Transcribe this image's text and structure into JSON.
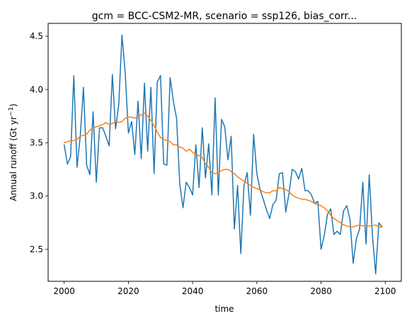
{
  "chart_data": {
    "type": "line",
    "title": "gcm = BCC-CSM2-MR, scenario = ssp126, bias_corr...",
    "xlabel": "time",
    "ylabel": "Annual runoff (Gt yr",
    "ylabel_sup": "−1",
    "ylabel_close": ")",
    "xlim": [
      1995,
      2105
    ],
    "ylim": [
      2.2,
      4.62
    ],
    "xticks": [
      2000,
      2020,
      2040,
      2060,
      2080,
      2100
    ],
    "yticks": [
      2.5,
      3.0,
      3.5,
      4.0,
      4.5
    ],
    "ytick_labels": [
      "2.5",
      "3.0",
      "3.5",
      "4.0",
      "4.5"
    ],
    "grid": false,
    "colors": {
      "series1": "#1f77b4",
      "series2": "#ff7f0e"
    },
    "series": [
      {
        "values": [
          [
            2000,
            3.48
          ],
          [
            2001,
            3.3
          ],
          [
            2002,
            3.37
          ],
          [
            2003,
            4.13
          ],
          [
            2004,
            3.27
          ],
          [
            2005,
            3.56
          ],
          [
            2006,
            4.02
          ],
          [
            2007,
            3.29
          ],
          [
            2008,
            3.2
          ],
          [
            2009,
            3.79
          ],
          [
            2010,
            3.13
          ],
          [
            2011,
            3.64
          ],
          [
            2012,
            3.64
          ],
          [
            2013,
            3.56
          ],
          [
            2014,
            3.47
          ],
          [
            2015,
            4.14
          ],
          [
            2016,
            3.63
          ],
          [
            2017,
            3.86
          ],
          [
            2018,
            4.51
          ],
          [
            2019,
            4.16
          ],
          [
            2020,
            3.59
          ],
          [
            2021,
            3.7
          ],
          [
            2022,
            3.39
          ],
          [
            2023,
            3.89
          ],
          [
            2024,
            3.35
          ],
          [
            2025,
            4.06
          ],
          [
            2026,
            3.42
          ],
          [
            2027,
            4.02
          ],
          [
            2028,
            3.21
          ],
          [
            2029,
            4.07
          ],
          [
            2030,
            4.13
          ],
          [
            2031,
            3.3
          ],
          [
            2032,
            3.29
          ],
          [
            2033,
            4.11
          ],
          [
            2034,
            3.89
          ],
          [
            2035,
            3.73
          ],
          [
            2036,
            3.11
          ],
          [
            2037,
            2.89
          ],
          [
            2038,
            3.13
          ],
          [
            2039,
            3.08
          ],
          [
            2040,
            3.01
          ],
          [
            2041,
            3.48
          ],
          [
            2042,
            3.08
          ],
          [
            2043,
            3.64
          ],
          [
            2044,
            3.17
          ],
          [
            2045,
            3.49
          ],
          [
            2046,
            3.01
          ],
          [
            2047,
            3.92
          ],
          [
            2048,
            3.01
          ],
          [
            2049,
            3.72
          ],
          [
            2050,
            3.65
          ],
          [
            2051,
            3.34
          ],
          [
            2052,
            3.56
          ],
          [
            2053,
            2.69
          ],
          [
            2054,
            3.1
          ],
          [
            2055,
            2.46
          ],
          [
            2056,
            3.1
          ],
          [
            2057,
            3.22
          ],
          [
            2058,
            2.82
          ],
          [
            2059,
            3.58
          ],
          [
            2060,
            3.21
          ],
          [
            2061,
            3.06
          ],
          [
            2062,
            2.97
          ],
          [
            2063,
            2.87
          ],
          [
            2064,
            2.79
          ],
          [
            2065,
            2.92
          ],
          [
            2066,
            2.96
          ],
          [
            2067,
            3.21
          ],
          [
            2068,
            3.22
          ],
          [
            2069,
            2.85
          ],
          [
            2070,
            3.02
          ],
          [
            2071,
            3.25
          ],
          [
            2072,
            3.23
          ],
          [
            2073,
            3.16
          ],
          [
            2074,
            3.26
          ],
          [
            2075,
            3.05
          ],
          [
            2076,
            3.05
          ],
          [
            2077,
            3.01
          ],
          [
            2078,
            2.93
          ],
          [
            2079,
            2.95
          ],
          [
            2080,
            2.5
          ],
          [
            2081,
            2.63
          ],
          [
            2082,
            2.83
          ],
          [
            2083,
            2.88
          ],
          [
            2084,
            2.64
          ],
          [
            2085,
            2.67
          ],
          [
            2086,
            2.64
          ],
          [
            2087,
            2.86
          ],
          [
            2088,
            2.91
          ],
          [
            2089,
            2.78
          ],
          [
            2090,
            2.37
          ],
          [
            2091,
            2.6
          ],
          [
            2092,
            2.69
          ],
          [
            2093,
            3.13
          ],
          [
            2094,
            2.55
          ],
          [
            2095,
            3.2
          ],
          [
            2096,
            2.63
          ],
          [
            2097,
            2.27
          ],
          [
            2098,
            2.75
          ],
          [
            2099,
            2.71
          ]
        ]
      },
      {
        "values": [
          [
            2000,
            3.5
          ],
          [
            2001,
            3.51
          ],
          [
            2002,
            3.52
          ],
          [
            2003,
            3.52
          ],
          [
            2004,
            3.53
          ],
          [
            2005,
            3.56
          ],
          [
            2006,
            3.57
          ],
          [
            2007,
            3.58
          ],
          [
            2008,
            3.62
          ],
          [
            2009,
            3.64
          ],
          [
            2010,
            3.65
          ],
          [
            2011,
            3.66
          ],
          [
            2012,
            3.67
          ],
          [
            2013,
            3.69
          ],
          [
            2014,
            3.67
          ],
          [
            2015,
            3.68
          ],
          [
            2016,
            3.7
          ],
          [
            2017,
            3.69
          ],
          [
            2018,
            3.7
          ],
          [
            2019,
            3.73
          ],
          [
            2020,
            3.74
          ],
          [
            2021,
            3.74
          ],
          [
            2022,
            3.73
          ],
          [
            2023,
            3.75
          ],
          [
            2024,
            3.76
          ],
          [
            2025,
            3.78
          ],
          [
            2026,
            3.75
          ],
          [
            2027,
            3.71
          ],
          [
            2028,
            3.66
          ],
          [
            2029,
            3.6
          ],
          [
            2030,
            3.55
          ],
          [
            2031,
            3.53
          ],
          [
            2032,
            3.52
          ],
          [
            2033,
            3.51
          ],
          [
            2034,
            3.48
          ],
          [
            2035,
            3.48
          ],
          [
            2036,
            3.46
          ],
          [
            2037,
            3.45
          ],
          [
            2038,
            3.42
          ],
          [
            2039,
            3.44
          ],
          [
            2040,
            3.41
          ],
          [
            2041,
            3.39
          ],
          [
            2042,
            3.38
          ],
          [
            2043,
            3.36
          ],
          [
            2044,
            3.3
          ],
          [
            2045,
            3.27
          ],
          [
            2046,
            3.22
          ],
          [
            2047,
            3.21
          ],
          [
            2048,
            3.22
          ],
          [
            2049,
            3.24
          ],
          [
            2050,
            3.25
          ],
          [
            2051,
            3.25
          ],
          [
            2052,
            3.23
          ],
          [
            2053,
            3.21
          ],
          [
            2054,
            3.18
          ],
          [
            2055,
            3.16
          ],
          [
            2056,
            3.14
          ],
          [
            2057,
            3.12
          ],
          [
            2058,
            3.1
          ],
          [
            2059,
            3.08
          ],
          [
            2060,
            3.07
          ],
          [
            2061,
            3.06
          ],
          [
            2062,
            3.04
          ],
          [
            2063,
            3.03
          ],
          [
            2064,
            3.03
          ],
          [
            2065,
            3.05
          ],
          [
            2066,
            3.05
          ],
          [
            2067,
            3.08
          ],
          [
            2068,
            3.07
          ],
          [
            2069,
            3.06
          ],
          [
            2070,
            3.04
          ],
          [
            2071,
            3.01
          ],
          [
            2072,
            2.99
          ],
          [
            2073,
            2.98
          ],
          [
            2074,
            2.97
          ],
          [
            2075,
            2.97
          ],
          [
            2076,
            2.96
          ],
          [
            2077,
            2.95
          ],
          [
            2078,
            2.93
          ],
          [
            2079,
            2.92
          ],
          [
            2080,
            2.91
          ],
          [
            2081,
            2.89
          ],
          [
            2082,
            2.86
          ],
          [
            2083,
            2.82
          ],
          [
            2084,
            2.79
          ],
          [
            2085,
            2.77
          ],
          [
            2086,
            2.75
          ],
          [
            2087,
            2.73
          ],
          [
            2088,
            2.72
          ],
          [
            2089,
            2.71
          ],
          [
            2090,
            2.71
          ],
          [
            2091,
            2.72
          ],
          [
            2092,
            2.73
          ],
          [
            2093,
            2.72
          ],
          [
            2094,
            2.72
          ],
          [
            2095,
            2.72
          ],
          [
            2096,
            2.72
          ],
          [
            2097,
            2.73
          ],
          [
            2098,
            2.71
          ],
          [
            2099,
            2.71
          ]
        ]
      }
    ]
  }
}
